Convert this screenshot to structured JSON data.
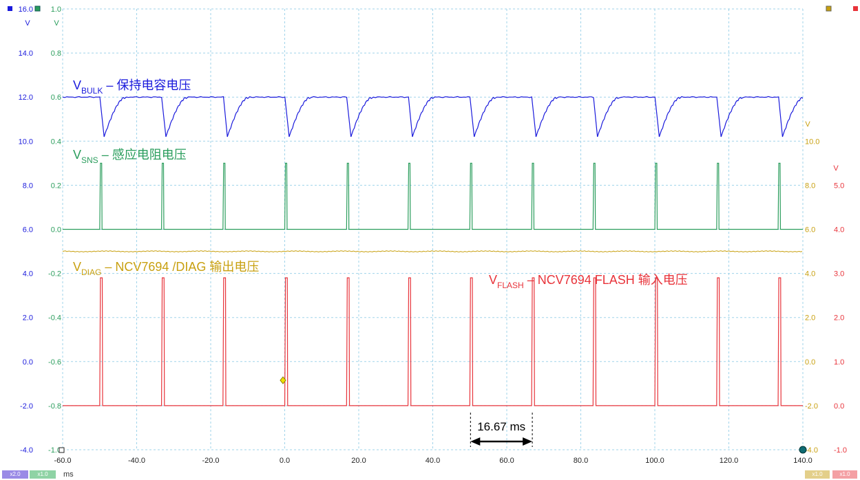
{
  "chart_data": {
    "type": "line",
    "x_unit": "ms",
    "xlim": [
      -60,
      140
    ],
    "x_ticks": [
      "-60.0",
      "-40.0",
      "-20.0",
      "0.0",
      "20.0",
      "40.0",
      "60.0",
      "80.0",
      "100.0",
      "120.0",
      "140.0"
    ],
    "grid": true,
    "period_ms": 16.67,
    "pulse_times_ms": [
      -49.8,
      -33.1,
      -16.5,
      0.2,
      16.9,
      33.5,
      50.2,
      66.9,
      83.5,
      100.2,
      116.9,
      133.5
    ],
    "axes": [
      {
        "side": "left-outer",
        "color": "#1a1adc",
        "unit": "V",
        "ticks": [
          "16.0",
          "14.0",
          "12.0",
          "10.0",
          "8.0",
          "6.0",
          "4.0",
          "2.0",
          "0.0",
          "-2.0",
          "-4.0"
        ]
      },
      {
        "side": "left-inner",
        "color": "#2a9d5c",
        "unit": "V",
        "ticks": [
          "1.0",
          "0.8",
          "0.6",
          "0.4",
          "0.2",
          "0.0",
          "-0.2",
          "-0.4",
          "-0.6",
          "-0.8",
          "-1.0"
        ]
      },
      {
        "side": "right-inner",
        "color": "#c8a010",
        "unit": "V",
        "ticks": [
          "10.0",
          "8.0",
          "6.0",
          "4.0",
          "2.0",
          "0.0",
          "-2.0",
          "-4.0"
        ]
      },
      {
        "side": "right-outer",
        "color": "#e8333a",
        "unit": "V",
        "ticks": [
          "5.0",
          "4.0",
          "3.0",
          "2.0",
          "1.0",
          "0.0",
          "-1.0"
        ]
      }
    ],
    "series": [
      {
        "key": "bulk",
        "name_main": "V",
        "name_sub": "BULK",
        "name_rest": " – 保持电容电压",
        "color": "#1a1adc",
        "high_V": 12.0,
        "min_V": 10.2,
        "axis": "left-outer"
      },
      {
        "key": "sns",
        "name_main": "V",
        "name_sub": "SNS",
        "name_rest": " – 感应电阻电压",
        "color": "#2a9d5c",
        "base_V": 0.0,
        "peak_V": 0.3,
        "axis": "left-inner"
      },
      {
        "key": "diag",
        "name_main": "V",
        "name_sub": "DIAG",
        "name_rest": " – NCV7694 /DIAG 输出电压",
        "color": "#c8a010",
        "level_V": 5.0,
        "axis": "right-inner"
      },
      {
        "key": "flash",
        "name_main": "V",
        "name_sub": "FLASH",
        "name_rest": " – NCV7694 FLASH 输入电压",
        "color": "#e8333a",
        "low_V": 0.0,
        "high_V": 2.9,
        "axis": "right-outer"
      }
    ],
    "annotation": {
      "text": "16.67 ms",
      "from_ms": 50.2,
      "to_ms": 66.9
    }
  },
  "footer": {
    "x_unit": "ms",
    "chips": [
      {
        "text": "x2.0",
        "color": "#9a8ae6"
      },
      {
        "text": "x1.0",
        "color": "#8fd3a5"
      },
      {
        "text": "x1.0",
        "color": "#e3cf8a"
      },
      {
        "text": "x1.0",
        "color": "#f4a0a4"
      }
    ]
  }
}
